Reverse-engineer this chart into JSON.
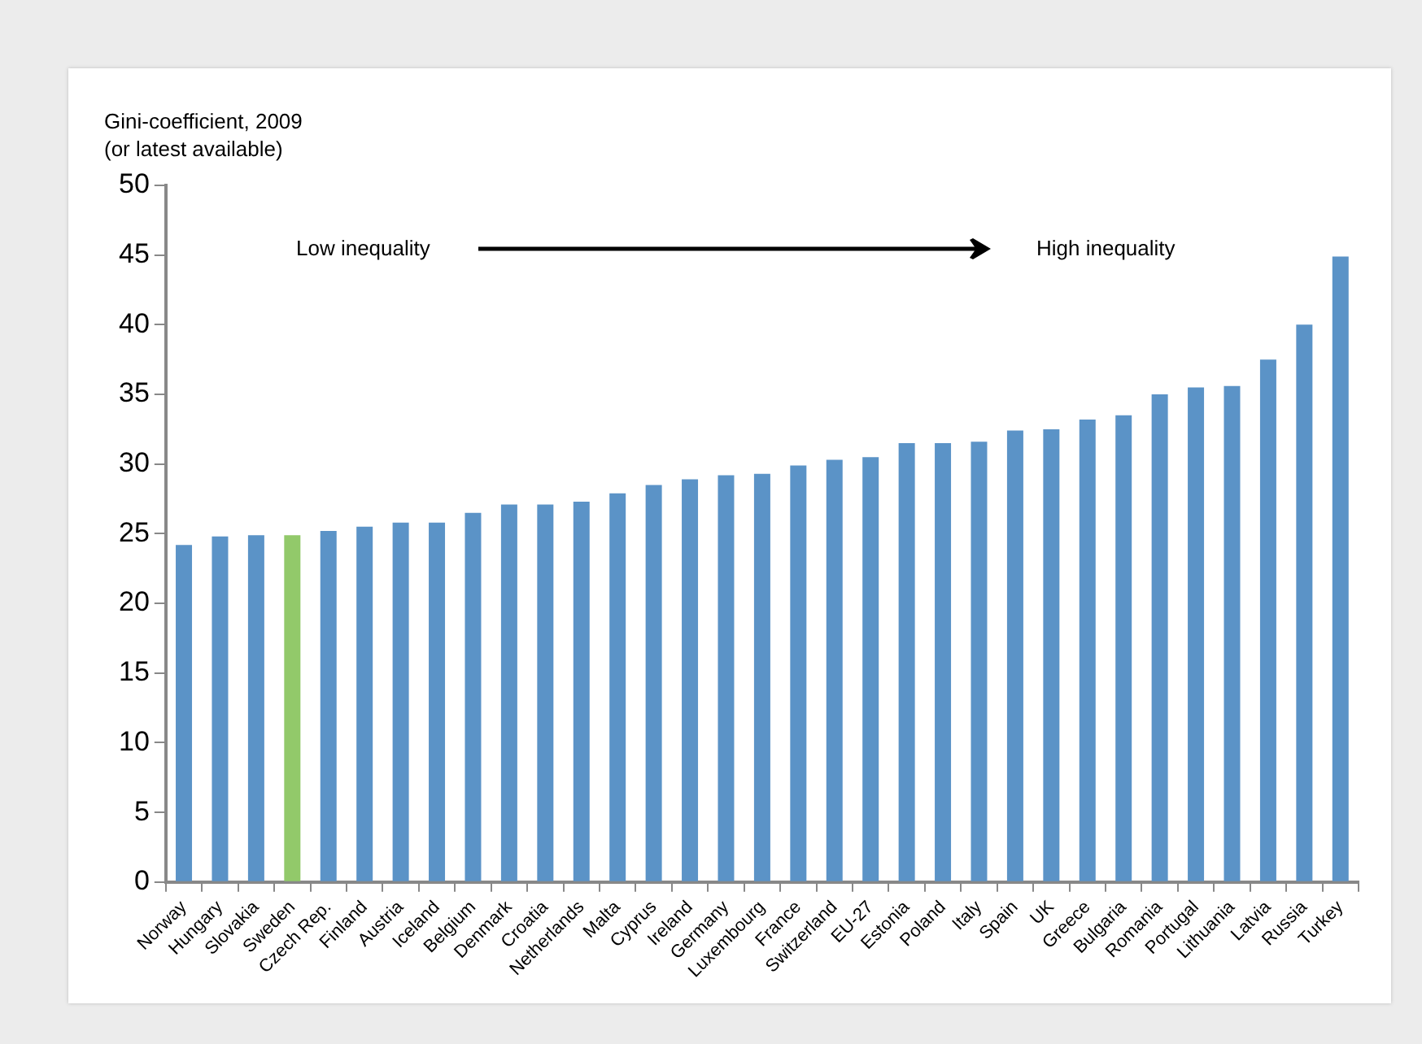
{
  "chart_data": {
    "type": "bar",
    "ylabel": "Gini-coefficient, 2009\n(or latest available)",
    "categories": [
      "Norway",
      "Hungary",
      "Slovakia",
      "Sweden",
      "Czech Rep.",
      "Finland",
      "Austria",
      "Iceland",
      "Belgium",
      "Denmark",
      "Croatia",
      "Netherlands",
      "Malta",
      "Cyprus",
      "Ireland",
      "Germany",
      "Luxembourg",
      "France",
      "Switzerland",
      "EU-27",
      "Estonia",
      "Poland",
      "Italy",
      "Spain",
      "UK",
      "Greece",
      "Bulgaria",
      "Romania",
      "Portugal",
      "Lithuania",
      "Latvia",
      "Russia",
      "Turkey"
    ],
    "values": [
      24.2,
      24.8,
      24.9,
      24.9,
      25.2,
      25.5,
      25.8,
      25.8,
      26.5,
      27.1,
      27.1,
      27.3,
      27.9,
      28.5,
      28.9,
      29.2,
      29.3,
      29.9,
      30.3,
      30.5,
      31.5,
      31.5,
      31.6,
      32.4,
      32.5,
      33.2,
      33.5,
      35.0,
      35.5,
      35.6,
      37.5,
      40.0,
      44.9
    ],
    "colors": [
      "#5b93c7",
      "#5b93c7",
      "#5b93c7",
      "#92c96a",
      "#5b93c7",
      "#5b93c7",
      "#5b93c7",
      "#5b93c7",
      "#5b93c7",
      "#5b93c7",
      "#5b93c7",
      "#5b93c7",
      "#5b93c7",
      "#5b93c7",
      "#5b93c7",
      "#5b93c7",
      "#5b93c7",
      "#5b93c7",
      "#5b93c7",
      "#5b93c7",
      "#5b93c7",
      "#5b93c7",
      "#5b93c7",
      "#5b93c7",
      "#5b93c7",
      "#5b93c7",
      "#5b93c7",
      "#5b93c7",
      "#5b93c7",
      "#5b93c7",
      "#5b93c7",
      "#5b93c7",
      "#5b93c7"
    ],
    "ylim": [
      0,
      50
    ],
    "yticks": [
      0,
      5,
      10,
      15,
      20,
      25,
      30,
      35,
      40,
      45,
      50
    ],
    "annotations": [
      "Low inequality",
      "High inequality"
    ],
    "grid": false,
    "legend": false
  }
}
